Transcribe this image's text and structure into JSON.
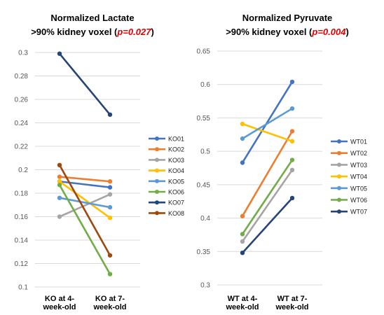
{
  "chart_data": [
    {
      "type": "line",
      "title_line1": "Normalized Lactate",
      "title_line2": ">90% kidney voxel (",
      "title_p": "p=0.027",
      "title_close": ")",
      "categories": [
        [
          "KO at 4-",
          "week-old"
        ],
        [
          "KO at 7-",
          "week-old"
        ]
      ],
      "ylim": [
        0.1,
        0.3
      ],
      "yticks": [
        "0.1",
        "0.12",
        "0.14",
        "0.16",
        "0.18",
        "0.2",
        "0.22",
        "0.24",
        "0.26",
        "0.28",
        "0.3"
      ],
      "grid": true,
      "legend_position": "right",
      "series": [
        {
          "name": "KO01",
          "values": [
            0.19,
            0.185
          ],
          "color": "#4472c4"
        },
        {
          "name": "KO02",
          "values": [
            0.194,
            0.19
          ],
          "color": "#ed7d31"
        },
        {
          "name": "KO03",
          "values": [
            0.16,
            0.179
          ],
          "color": "#a5a5a5"
        },
        {
          "name": "KO04",
          "values": [
            0.19,
            0.159
          ],
          "color": "#ffc000"
        },
        {
          "name": "KO05",
          "values": [
            0.176,
            0.168
          ],
          "color": "#5b9bd5"
        },
        {
          "name": "KO06",
          "values": [
            0.187,
            0.111
          ],
          "color": "#70ad47"
        },
        {
          "name": "KO07",
          "values": [
            0.299,
            0.247
          ],
          "color": "#264478"
        },
        {
          "name": "KO08",
          "values": [
            0.204,
            0.127
          ],
          "color": "#9e480e"
        }
      ]
    },
    {
      "type": "line",
      "title_line1": "Normalized Pyruvate",
      "title_line2": ">90% kidney voxel (",
      "title_p": "p=0.004",
      "title_close": ")",
      "categories": [
        [
          "WT at 4-",
          "week-old"
        ],
        [
          "WT at 7-",
          "week-old"
        ]
      ],
      "ylim": [
        0.3,
        0.65
      ],
      "yticks": [
        "0.3",
        "0.35",
        "0.4",
        "0.45",
        "0.5",
        "0.55",
        "0.6",
        "0.65"
      ],
      "grid": true,
      "legend_position": "right",
      "series": [
        {
          "name": "WT01",
          "values": [
            0.483,
            0.604
          ],
          "color": "#4472c4"
        },
        {
          "name": "WT02",
          "values": [
            0.403,
            0.53
          ],
          "color": "#ed7d31"
        },
        {
          "name": "WT03",
          "values": [
            0.365,
            0.472
          ],
          "color": "#a5a5a5"
        },
        {
          "name": "WT04",
          "values": [
            0.541,
            0.515
          ],
          "color": "#ffc000"
        },
        {
          "name": "WT05",
          "values": [
            0.519,
            0.564
          ],
          "color": "#5b9bd5"
        },
        {
          "name": "WT06",
          "values": [
            0.376,
            0.487
          ],
          "color": "#70ad47"
        },
        {
          "name": "WT07",
          "values": [
            0.348,
            0.43
          ],
          "color": "#264478"
        }
      ]
    }
  ]
}
